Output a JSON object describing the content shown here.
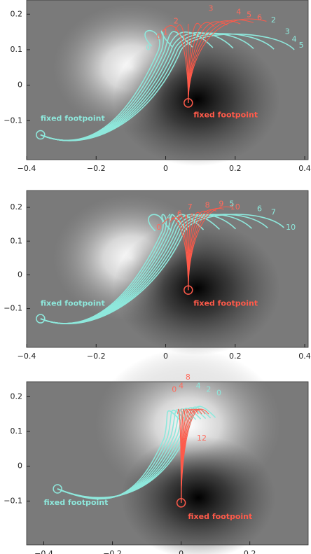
{
  "chart_data": [
    {
      "type": "field-lines",
      "xlim": [
        -0.4,
        0.41
      ],
      "ylim": [
        -0.21,
        0.24
      ],
      "xticks": [
        {
          "value": -0.4,
          "label": "−0.4"
        },
        {
          "value": -0.2,
          "label": "−0.2"
        },
        0,
        0.2,
        0.4
      ],
      "yticks": [
        0.2,
        0.1,
        0,
        {
          "value": -0.1,
          "label": "−0.1"
        }
      ],
      "annotations": [
        {
          "text": "fixed footpoint",
          "color": "#8ee8dc"
        },
        {
          "text": "fixed footpoint",
          "color": "#ff5a4a"
        },
        {
          "text": "3",
          "color": "#ff6b5c"
        },
        {
          "text": "4",
          "color": "#ff6b5c"
        },
        {
          "text": "5",
          "color": "#ff6b5c"
        },
        {
          "text": "6",
          "color": "#ff6b5c"
        },
        {
          "text": "2",
          "color": "#ff6b5c"
        },
        {
          "text": "0",
          "color": "#ff6b5c"
        },
        {
          "text": "1",
          "color": "#ff6b5c"
        },
        {
          "text": "2",
          "color": "#8ee8dc"
        },
        {
          "text": "3",
          "color": "#8ee8dc"
        },
        {
          "text": "4",
          "color": "#8ee8dc"
        },
        {
          "text": "5",
          "color": "#8ee8dc"
        },
        {
          "text": "0",
          "color": "#8ee8dc"
        }
      ]
    },
    {
      "type": "field-lines",
      "xlim": [
        -0.4,
        0.41
      ],
      "ylim": [
        -0.215,
        0.25
      ],
      "xticks": [
        {
          "value": -0.4,
          "label": "−0.4"
        },
        {
          "value": -0.2,
          "label": "−0.2"
        },
        0,
        0.2,
        0.4
      ],
      "yticks": [
        0.2,
        0.1,
        0,
        {
          "value": -0.1,
          "label": "−0.1"
        }
      ],
      "annotations": [
        {
          "text": "fixed footpoint",
          "color": "#8ee8dc"
        },
        {
          "text": "fixed footpoint",
          "color": "#ff5a4a"
        },
        {
          "text": "0",
          "color": "#ff6b5c"
        },
        {
          "text": "6",
          "color": "#ff6b5c"
        },
        {
          "text": "7",
          "color": "#ff6b5c"
        },
        {
          "text": "8",
          "color": "#ff6b5c"
        },
        {
          "text": "9",
          "color": "#ff6b5c"
        },
        {
          "text": "10",
          "color": "#ff6b5c"
        },
        {
          "text": "4",
          "color": "#8ee8dc"
        },
        {
          "text": "5",
          "color": "#8ee8dc"
        },
        {
          "text": "6",
          "color": "#8ee8dc"
        },
        {
          "text": "7",
          "color": "#8ee8dc"
        },
        {
          "text": "10",
          "color": "#8ee8dc"
        }
      ]
    },
    {
      "type": "field-lines",
      "xlim": [
        -0.45,
        0.37
      ],
      "ylim": [
        -0.226,
        0.243
      ],
      "xticks": [
        {
          "value": -0.4,
          "label": "−0.4"
        },
        {
          "value": -0.2,
          "label": "−0.2"
        },
        0,
        0.2
      ],
      "yticks": [
        0.2,
        0.1,
        0,
        {
          "value": -0.1,
          "label": "−0.1"
        }
      ],
      "annotations": [
        {
          "text": "fixed footpoint",
          "color": "#8ee8dc"
        },
        {
          "text": "fixed footpoint",
          "color": "#ff5a4a"
        },
        {
          "text": "0",
          "color": "#ff6b5c"
        },
        {
          "text": "4",
          "color": "#ff6b5c"
        },
        {
          "text": "8",
          "color": "#ff6b5c"
        },
        {
          "text": "12",
          "color": "#ff6b5c"
        },
        {
          "text": "4",
          "color": "#8ee8dc"
        },
        {
          "text": "2",
          "color": "#8ee8dc"
        },
        {
          "text": "0",
          "color": "#8ee8dc"
        }
      ]
    }
  ]
}
